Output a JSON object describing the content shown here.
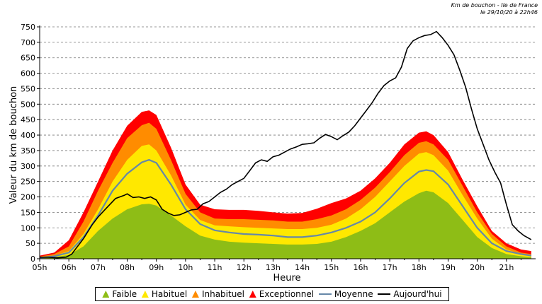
{
  "header": {
    "line1": "Km de bouchon - Ile de France",
    "line2": "le 29/10/20 à 22h46"
  },
  "chart_data": {
    "type": "area",
    "xlabel": "Heure",
    "ylabel": "Valeur du  km de bouchon",
    "x_ticks": [
      "05h",
      "06h",
      "07h",
      "08h",
      "09h",
      "10h",
      "11h",
      "12h",
      "13h",
      "14h",
      "15h",
      "16h",
      "17h",
      "18h",
      "19h",
      "20h",
      "21h"
    ],
    "x_range": [
      5.0,
      22.0
    ],
    "ylim": [
      0,
      750
    ],
    "y_ticks": [
      0,
      50,
      100,
      150,
      200,
      250,
      300,
      350,
      400,
      450,
      500,
      550,
      600,
      650,
      700,
      750
    ],
    "grid": "horizontal dashed",
    "legend_position": "bottom",
    "x": [
      5.0,
      5.5,
      6.0,
      6.5,
      7.0,
      7.5,
      8.0,
      8.5,
      8.75,
      9.0,
      9.5,
      10.0,
      10.5,
      11.0,
      11.5,
      12.0,
      12.5,
      13.0,
      13.5,
      14.0,
      14.5,
      15.0,
      15.5,
      16.0,
      16.5,
      17.0,
      17.5,
      18.0,
      18.25,
      18.5,
      19.0,
      19.5,
      20.0,
      20.5,
      21.0,
      21.5,
      21.85
    ],
    "series": [
      {
        "name": "Faible",
        "color": "#8ebd16",
        "values": [
          3,
          5,
          12,
          40,
          90,
          130,
          160,
          176,
          178,
          172,
          140,
          105,
          75,
          62,
          55,
          52,
          50,
          48,
          46,
          46,
          48,
          55,
          70,
          90,
          115,
          150,
          185,
          212,
          220,
          215,
          180,
          125,
          70,
          35,
          15,
          8,
          5
        ]
      },
      {
        "name": "Habituel",
        "color": "#ffe800",
        "values": [
          5,
          10,
          25,
          80,
          160,
          250,
          320,
          365,
          370,
          350,
          270,
          175,
          125,
          108,
          105,
          102,
          100,
          98,
          96,
          96,
          100,
          110,
          130,
          160,
          200,
          250,
          300,
          340,
          345,
          335,
          285,
          205,
          130,
          65,
          30,
          15,
          10
        ]
      },
      {
        "name": "Inhabituel",
        "color": "#ff8c00",
        "values": [
          7,
          15,
          40,
          120,
          220,
          310,
          390,
          432,
          440,
          420,
          320,
          210,
          150,
          130,
          128,
          128,
          126,
          124,
          120,
          120,
          128,
          140,
          160,
          190,
          230,
          280,
          335,
          375,
          380,
          370,
          320,
          235,
          150,
          80,
          40,
          20,
          15
        ]
      },
      {
        "name": "Exceptionnel",
        "color": "#ff0000",
        "values": [
          10,
          20,
          60,
          150,
          250,
          350,
          430,
          475,
          480,
          465,
          360,
          240,
          175,
          160,
          158,
          158,
          155,
          150,
          146,
          148,
          162,
          180,
          195,
          220,
          260,
          310,
          370,
          408,
          412,
          400,
          345,
          255,
          170,
          90,
          50,
          30,
          25
        ]
      },
      {
        "name": "Moyenne",
        "color": "#6688a8",
        "values": [
          3,
          8,
          20,
          70,
          140,
          220,
          275,
          312,
          320,
          310,
          240,
          160,
          112,
          92,
          85,
          80,
          78,
          75,
          70,
          70,
          75,
          85,
          100,
          120,
          150,
          195,
          245,
          282,
          287,
          283,
          240,
          170,
          100,
          50,
          25,
          15,
          10
        ]
      },
      {
        "name": "Aujourd'hui",
        "color": "#000000",
        "x": [
          5.0,
          5.3,
          5.6,
          5.9,
          6.1,
          6.3,
          6.5,
          6.8,
          7.0,
          7.3,
          7.6,
          7.9,
          8.0,
          8.2,
          8.4,
          8.6,
          8.8,
          9.0,
          9.2,
          9.4,
          9.6,
          9.8,
          10.0,
          10.2,
          10.4,
          10.6,
          10.8,
          11.0,
          11.2,
          11.4,
          11.6,
          11.8,
          12.0,
          12.2,
          12.4,
          12.6,
          12.8,
          13.0,
          13.2,
          13.4,
          13.6,
          13.8,
          14.0,
          14.2,
          14.4,
          14.6,
          14.8,
          15.0,
          15.2,
          15.4,
          15.6,
          15.8,
          16.0,
          16.2,
          16.4,
          16.6,
          16.8,
          17.0,
          17.2,
          17.4,
          17.6,
          17.8,
          18.0,
          18.2,
          18.4,
          18.6,
          18.8,
          19.0,
          19.2,
          19.4,
          19.6,
          19.8,
          20.0,
          20.2,
          20.4,
          20.6,
          20.8,
          21.0,
          21.2,
          21.4,
          21.6,
          21.85
        ],
        "values": [
          5,
          5,
          3,
          5,
          15,
          40,
          65,
          110,
          135,
          165,
          195,
          205,
          210,
          198,
          200,
          195,
          200,
          190,
          160,
          148,
          140,
          142,
          150,
          158,
          160,
          178,
          185,
          200,
          215,
          225,
          240,
          250,
          260,
          285,
          310,
          320,
          315,
          330,
          335,
          345,
          355,
          362,
          370,
          372,
          375,
          390,
          402,
          395,
          385,
          398,
          410,
          430,
          455,
          480,
          505,
          535,
          560,
          575,
          585,
          620,
          680,
          705,
          715,
          722,
          725,
          735,
          715,
          690,
          660,
          610,
          555,
          485,
          420,
          370,
          320,
          280,
          245,
          175,
          110,
          90,
          75,
          62
        ]
      }
    ]
  }
}
